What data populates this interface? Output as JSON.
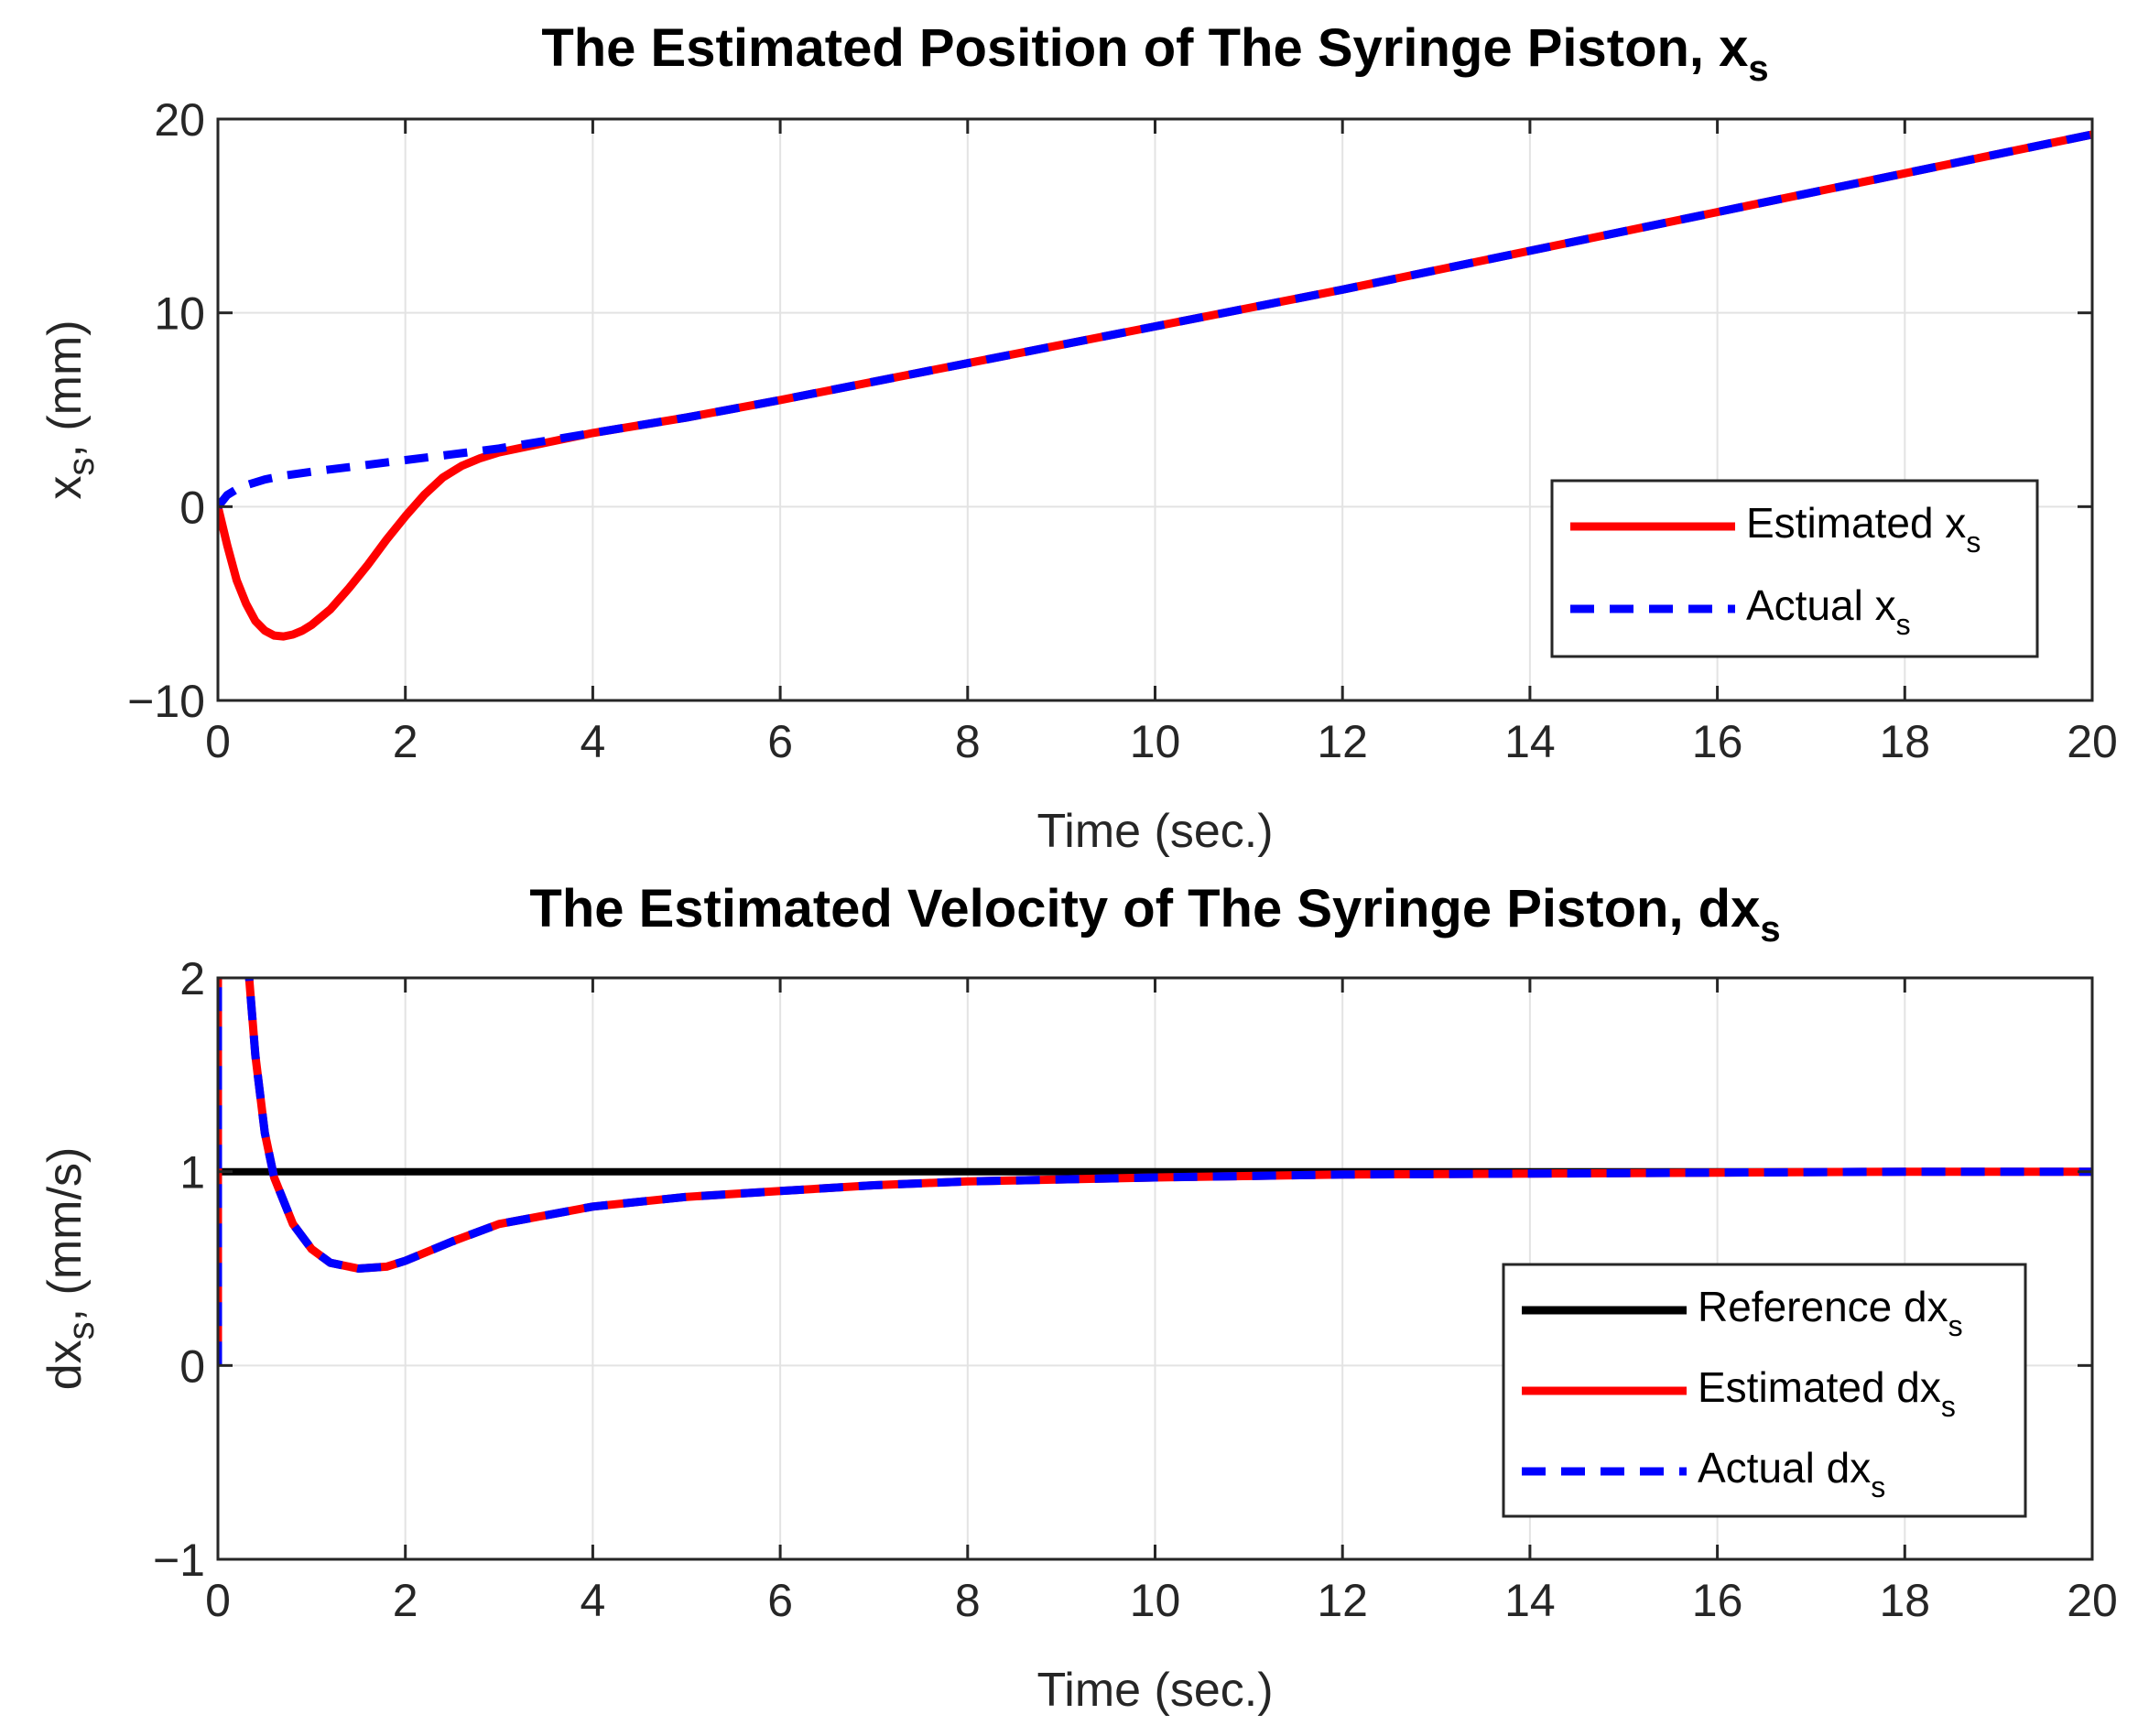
{
  "chart_data": [
    {
      "type": "line",
      "title": "The Estimated Position of The Syringe Piston, x",
      "title_sub": "s",
      "xlabel": "Time (sec.)",
      "ylabel": "x",
      "ylabel_sub": "s",
      "ylabel_rest": ", (mm)",
      "xlim": [
        0,
        20
      ],
      "ylim": [
        -10,
        20
      ],
      "xticks": [
        0,
        2,
        4,
        6,
        8,
        10,
        12,
        14,
        16,
        18,
        20
      ],
      "yticks": [
        -10,
        0,
        10,
        20
      ],
      "xtick_labels": [
        "0",
        "2",
        "4",
        "6",
        "8",
        "10",
        "12",
        "14",
        "16",
        "18",
        "20"
      ],
      "ytick_labels": [
        "−10",
        "0",
        "10",
        "20"
      ],
      "grid": true,
      "legend_position": "bottom-right",
      "series": [
        {
          "name": "Estimated x",
          "name_sub": "s",
          "color": "#ff0000",
          "style": "solid",
          "x": [
            0,
            0.1,
            0.2,
            0.3,
            0.4,
            0.5,
            0.6,
            0.7,
            0.8,
            0.9,
            1.0,
            1.2,
            1.4,
            1.6,
            1.8,
            2.0,
            2.2,
            2.4,
            2.6,
            2.8,
            3.0,
            3.5,
            4,
            5,
            6,
            8,
            10,
            12,
            14,
            16,
            18,
            20
          ],
          "y": [
            0,
            -2.0,
            -3.8,
            -5.0,
            -5.9,
            -6.4,
            -6.65,
            -6.7,
            -6.6,
            -6.4,
            -6.1,
            -5.3,
            -4.2,
            -3.0,
            -1.7,
            -0.5,
            0.6,
            1.5,
            2.1,
            2.5,
            2.8,
            3.3,
            3.8,
            4.6,
            5.5,
            7.4,
            9.3,
            11.2,
            13.2,
            15.2,
            17.2,
            19.2
          ]
        },
        {
          "name": "Actual x",
          "name_sub": "s",
          "color": "#0000ff",
          "style": "dashed",
          "x": [
            0,
            0.1,
            0.2,
            0.3,
            0.5,
            0.7,
            1.0,
            1.5,
            2.0,
            2.5,
            3.0,
            3.5,
            4,
            5,
            6,
            8,
            10,
            12,
            14,
            16,
            18,
            20
          ],
          "y": [
            0,
            0.6,
            0.9,
            1.1,
            1.4,
            1.6,
            1.8,
            2.1,
            2.4,
            2.7,
            3.0,
            3.4,
            3.8,
            4.6,
            5.5,
            7.4,
            9.3,
            11.2,
            13.2,
            15.2,
            17.2,
            19.2
          ]
        }
      ]
    },
    {
      "type": "line",
      "title": "The Estimated Velocity of The Syringe Piston, dx",
      "title_sub": "s",
      "xlabel": "Time (sec.)",
      "ylabel": "dx",
      "ylabel_sub": "s",
      "ylabel_rest": ", (mm/s)",
      "xlim": [
        0,
        20
      ],
      "ylim": [
        -1,
        2
      ],
      "xticks": [
        0,
        2,
        4,
        6,
        8,
        10,
        12,
        14,
        16,
        18,
        20
      ],
      "yticks": [
        -1,
        0,
        1,
        2
      ],
      "xtick_labels": [
        "0",
        "2",
        "4",
        "6",
        "8",
        "10",
        "12",
        "14",
        "16",
        "18",
        "20"
      ],
      "ytick_labels": [
        "−1",
        "0",
        "1",
        "2"
      ],
      "grid": true,
      "legend_position": "bottom-right",
      "series": [
        {
          "name": "Reference dx",
          "name_sub": "s",
          "color": "#000000",
          "style": "solid",
          "x": [
            0,
            20
          ],
          "y": [
            1,
            1
          ]
        },
        {
          "name": "Estimated dx",
          "name_sub": "s",
          "color": "#ff0000",
          "style": "solid",
          "x": [
            0,
            0,
            0.3,
            0.4,
            0.5,
            0.6,
            0.8,
            1.0,
            1.2,
            1.5,
            1.8,
            2.0,
            2.5,
            3.0,
            4,
            5,
            6,
            7,
            8,
            10,
            12,
            14,
            16,
            18,
            20
          ],
          "y": [
            0,
            2.2,
            2.2,
            1.6,
            1.2,
            0.97,
            0.73,
            0.6,
            0.53,
            0.5,
            0.51,
            0.54,
            0.64,
            0.73,
            0.82,
            0.87,
            0.9,
            0.93,
            0.95,
            0.97,
            0.985,
            0.99,
            0.995,
            1.0,
            1.0
          ]
        },
        {
          "name": "Actual dx",
          "name_sub": "s",
          "color": "#0000ff",
          "style": "dashed",
          "x": [
            0,
            0,
            0.3,
            0.4,
            0.5,
            0.6,
            0.8,
            1.0,
            1.2,
            1.5,
            1.8,
            2.0,
            2.5,
            3.0,
            4,
            5,
            6,
            7,
            8,
            10,
            12,
            14,
            16,
            18,
            20
          ],
          "y": [
            0,
            2.2,
            2.2,
            1.6,
            1.2,
            0.97,
            0.73,
            0.6,
            0.53,
            0.5,
            0.51,
            0.54,
            0.64,
            0.73,
            0.82,
            0.87,
            0.9,
            0.93,
            0.95,
            0.97,
            0.985,
            0.99,
            0.995,
            1.0,
            1.0
          ]
        }
      ]
    }
  ]
}
